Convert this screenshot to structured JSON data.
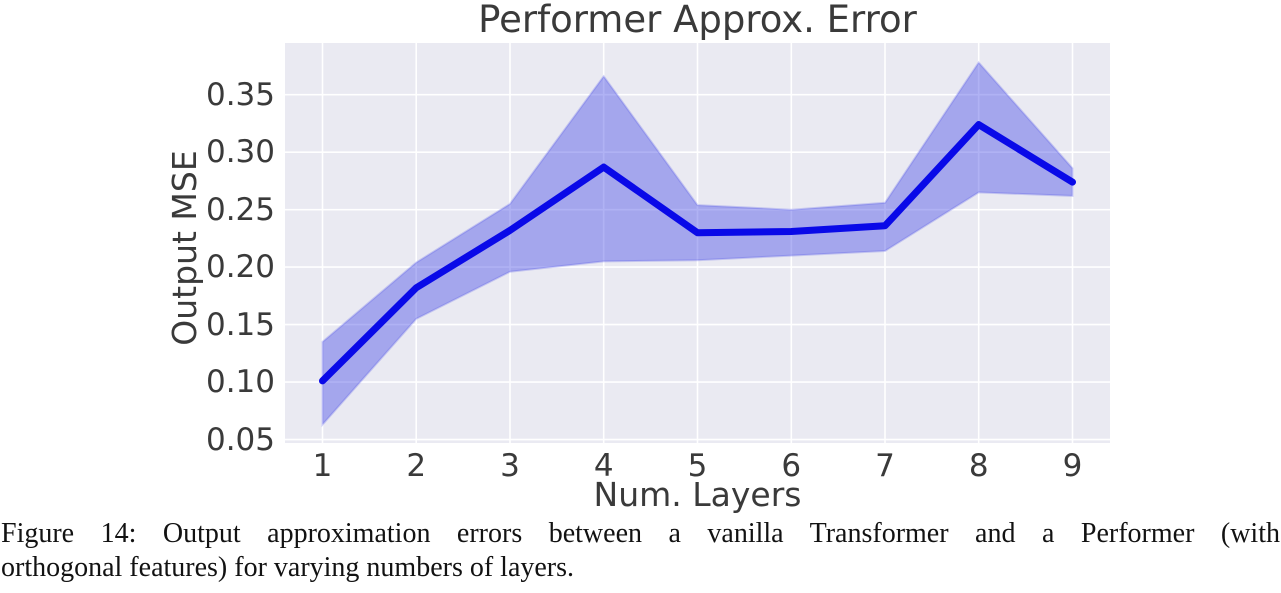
{
  "figure": {
    "caption_lines": [
      "Figure 14: Output approximation errors between a vanilla Transformer and a Performer (with",
      "orthogonal features) for varying numbers of layers."
    ]
  },
  "chart_data": {
    "type": "line",
    "title": "Performer Approx. Error",
    "xlabel": "Num. Layers",
    "ylabel": "Output MSE",
    "x": [
      1,
      2,
      3,
      4,
      5,
      6,
      7,
      8,
      9
    ],
    "y": [
      0.101,
      0.182,
      0.232,
      0.287,
      0.23,
      0.231,
      0.236,
      0.324,
      0.274
    ],
    "band_lower": [
      0.063,
      0.155,
      0.196,
      0.205,
      0.206,
      0.21,
      0.214,
      0.265,
      0.262
    ],
    "band_upper": [
      0.135,
      0.204,
      0.255,
      0.366,
      0.254,
      0.25,
      0.256,
      0.378,
      0.286
    ],
    "xlim": [
      0.6,
      9.4
    ],
    "ylim": [
      0.047,
      0.395
    ],
    "xticks": [
      1,
      2,
      3,
      4,
      5,
      6,
      7,
      8,
      9
    ],
    "xtick_labels": [
      "1",
      "2",
      "3",
      "4",
      "5",
      "6",
      "7",
      "8",
      "9"
    ],
    "yticks": [
      0.05,
      0.1,
      0.15,
      0.2,
      0.25,
      0.3,
      0.35
    ],
    "ytick_labels": [
      "0.05",
      "0.10",
      "0.15",
      "0.20",
      "0.25",
      "0.30",
      "0.35"
    ],
    "grid": true,
    "legend": "none",
    "colors": {
      "line": "#0909e8",
      "band_fill": "#5055e6",
      "band_opacity": "0.45",
      "plot_background": "#eaeaf2",
      "gridline": "#ffffff",
      "text": "#3a3a3a"
    }
  }
}
